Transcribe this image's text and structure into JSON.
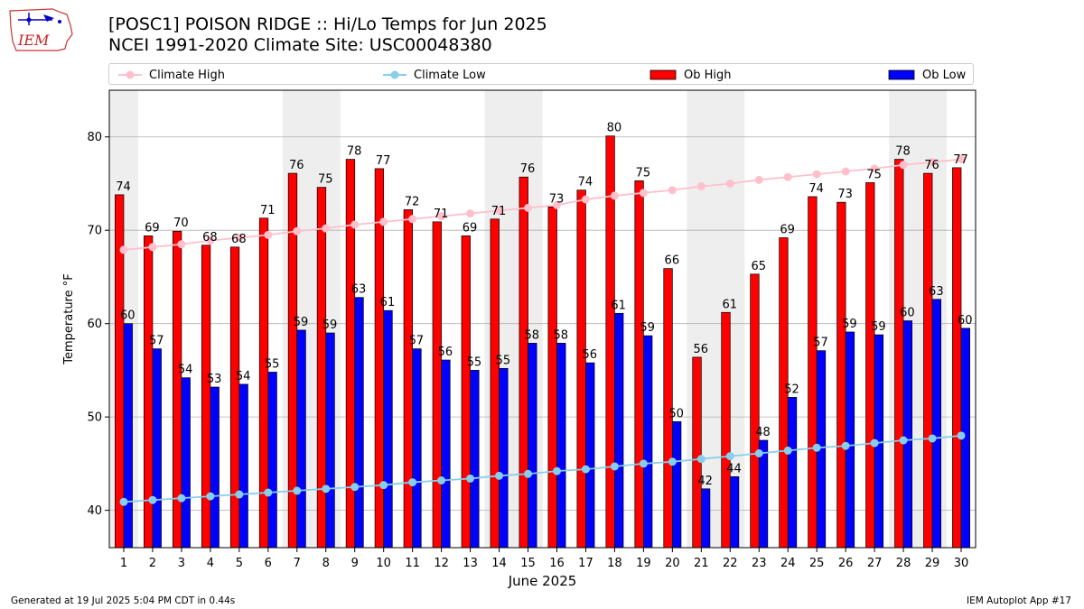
{
  "header": {
    "title": "[POSC1] POISON RIDGE :: Hi/Lo Temps for Jun 2025",
    "subtitle": "NCEI 1991-2020 Climate Site: USC00048380",
    "logo_text": "IEM"
  },
  "footer": {
    "generated": "Generated at 19 Jul 2025 5:04 PM CDT in 0.44s",
    "app": "IEM Autoplot App #17"
  },
  "colors": {
    "ob_high": "#ff0000",
    "ob_low": "#0000ff",
    "climate_high": "#ffc0cb",
    "climate_low": "#87ceeb",
    "weekend_shade": "#eeeeee",
    "grid": "#b0b0b0"
  },
  "chart_data": {
    "type": "bar",
    "title": "[POSC1] POISON RIDGE :: Hi/Lo Temps for Jun 2025",
    "xlabel": "June 2025",
    "ylabel": "Temperature °F",
    "ylim": [
      36,
      85
    ],
    "yticks": [
      40,
      50,
      60,
      70,
      80
    ],
    "grid": true,
    "legend_position": "top",
    "legend": [
      "Climate High",
      "Climate Low",
      "Ob High",
      "Ob Low"
    ],
    "categories": [
      "1",
      "2",
      "3",
      "4",
      "5",
      "6",
      "7",
      "8",
      "9",
      "10",
      "11",
      "12",
      "13",
      "14",
      "15",
      "16",
      "17",
      "18",
      "19",
      "20",
      "21",
      "22",
      "23",
      "24",
      "25",
      "26",
      "27",
      "28",
      "29",
      "30"
    ],
    "shaded_days": [
      [
        1,
        1
      ],
      [
        7,
        8
      ],
      [
        14,
        15
      ],
      [
        21,
        22
      ],
      [
        28,
        29
      ]
    ],
    "series": [
      {
        "name": "Ob High",
        "kind": "bar",
        "values": [
          73.8,
          69.4,
          69.9,
          68.4,
          68.2,
          71.3,
          76.1,
          74.6,
          77.6,
          76.6,
          72.2,
          70.9,
          69.4,
          71.2,
          75.7,
          72.5,
          74.3,
          80.1,
          75.3,
          65.9,
          56.4,
          61.2,
          65.3,
          69.2,
          73.6,
          73.0,
          75.1,
          77.6,
          76.1,
          76.7
        ],
        "labels": [
          "74",
          "69",
          "70",
          "68",
          "68",
          "71",
          "76",
          "75",
          "78",
          "77",
          "72",
          "71",
          "69",
          "71",
          "76",
          "73",
          "74",
          "80",
          "75",
          "66",
          "56",
          "61",
          "65",
          "69",
          "74",
          "73",
          "75",
          "78",
          "76",
          "77"
        ]
      },
      {
        "name": "Ob Low",
        "kind": "bar",
        "values": [
          60.0,
          57.3,
          54.2,
          53.2,
          53.5,
          54.8,
          59.3,
          59.0,
          62.8,
          61.4,
          57.3,
          56.1,
          55.0,
          55.2,
          57.9,
          57.9,
          55.8,
          61.1,
          58.7,
          49.5,
          42.3,
          43.6,
          47.5,
          52.1,
          57.1,
          59.1,
          58.8,
          60.3,
          62.6,
          59.5
        ],
        "labels": [
          "60",
          "57",
          "54",
          "53",
          "54",
          "55",
          "59",
          "59",
          "63",
          "61",
          "57",
          "56",
          "55",
          "55",
          "58",
          "58",
          "56",
          "61",
          "59",
          "50",
          "42",
          "44",
          "48",
          "52",
          "57",
          "59",
          "59",
          "60",
          "63",
          "60"
        ]
      },
      {
        "name": "Climate High",
        "kind": "line",
        "values": [
          67.9,
          68.2,
          68.5,
          68.9,
          69.2,
          69.5,
          69.9,
          70.2,
          70.6,
          70.9,
          71.2,
          71.5,
          71.8,
          72.1,
          72.4,
          72.7,
          73.3,
          73.7,
          74.0,
          74.3,
          74.7,
          75.0,
          75.4,
          75.7,
          76.0,
          76.3,
          76.6,
          77.0,
          77.3,
          77.6
        ]
      },
      {
        "name": "Climate Low",
        "kind": "line",
        "values": [
          40.9,
          41.1,
          41.3,
          41.5,
          41.7,
          41.9,
          42.1,
          42.3,
          42.5,
          42.7,
          43.0,
          43.2,
          43.4,
          43.7,
          43.9,
          44.2,
          44.4,
          44.7,
          45.0,
          45.2,
          45.5,
          45.8,
          46.1,
          46.4,
          46.7,
          46.9,
          47.2,
          47.5,
          47.7,
          48.0
        ]
      }
    ]
  }
}
